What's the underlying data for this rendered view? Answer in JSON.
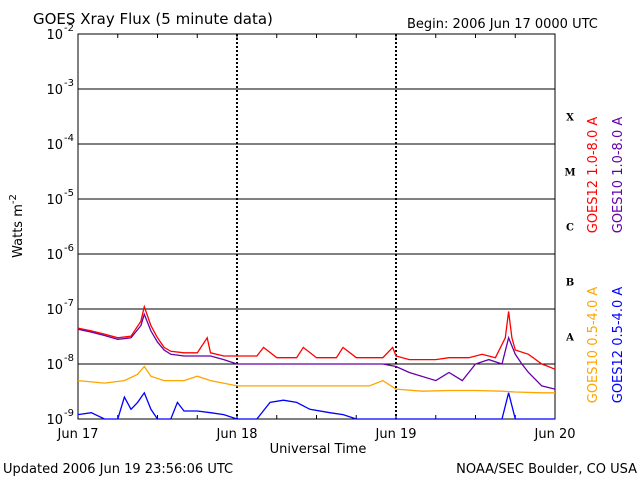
{
  "chart_data": {
    "type": "line",
    "title": "GOES Xray Flux (5 minute data)",
    "begin_label": "Begin:  2006 Jun 17 0000 UTC",
    "xlabel": "Universal Time",
    "ylabel": "Watts m",
    "ylabel_sup": "-2",
    "yscale": "log",
    "ylim": [
      1e-09,
      0.01
    ],
    "xlim": [
      0,
      72
    ],
    "x_unit": "hours since 2006 Jun 17 0000 UTC",
    "x_ticks": [
      {
        "x": 0,
        "label": "Jun 17"
      },
      {
        "x": 24,
        "label": "Jun 18"
      },
      {
        "x": 48,
        "label": "Jun 19"
      },
      {
        "x": 72,
        "label": "Jun 20"
      }
    ],
    "y_ticks": [
      {
        "base": "10",
        "exp": "-9"
      },
      {
        "base": "10",
        "exp": "-8"
      },
      {
        "base": "10",
        "exp": "-7"
      },
      {
        "base": "10",
        "exp": "-6"
      },
      {
        "base": "10",
        "exp": "-5"
      },
      {
        "base": "10",
        "exp": "-4"
      },
      {
        "base": "10",
        "exp": "-3"
      },
      {
        "base": "10",
        "exp": "-2"
      }
    ],
    "flare_classes": [
      "A",
      "B",
      "C",
      "M",
      "X"
    ],
    "series": [
      {
        "name": "GOES12 1.0-8.0 A",
        "color": "#ff0000",
        "points": [
          [
            0,
            4.5e-08
          ],
          [
            2,
            4e-08
          ],
          [
            4,
            3.5e-08
          ],
          [
            6,
            3e-08
          ],
          [
            8,
            3.2e-08
          ],
          [
            9.5,
            6e-08
          ],
          [
            10,
            1.1e-07
          ],
          [
            11,
            5e-08
          ],
          [
            12,
            3e-08
          ],
          [
            13,
            2e-08
          ],
          [
            14,
            1.7e-08
          ],
          [
            16,
            1.6e-08
          ],
          [
            18,
            1.6e-08
          ],
          [
            19.5,
            3e-08
          ],
          [
            20,
            1.6e-08
          ],
          [
            22,
            1.4e-08
          ],
          [
            24,
            1.4e-08
          ],
          [
            27,
            1.4e-08
          ],
          [
            28,
            2e-08
          ],
          [
            30,
            1.3e-08
          ],
          [
            33,
            1.3e-08
          ],
          [
            34,
            2e-08
          ],
          [
            36,
            1.3e-08
          ],
          [
            39,
            1.3e-08
          ],
          [
            40,
            2e-08
          ],
          [
            42,
            1.3e-08
          ],
          [
            46,
            1.3e-08
          ],
          [
            47.5,
            2e-08
          ],
          [
            48,
            1.4e-08
          ],
          [
            50,
            1.2e-08
          ],
          [
            54,
            1.2e-08
          ],
          [
            56,
            1.3e-08
          ],
          [
            59,
            1.3e-08
          ],
          [
            61,
            1.5e-08
          ],
          [
            63,
            1.3e-08
          ],
          [
            64.5,
            3e-08
          ],
          [
            65,
            9e-08
          ],
          [
            65.5,
            3e-08
          ],
          [
            66,
            1.8e-08
          ],
          [
            68,
            1.5e-08
          ],
          [
            70,
            1e-08
          ],
          [
            71,
            9e-09
          ],
          [
            72,
            8e-09
          ]
        ]
      },
      {
        "name": "GOES10 1.0-8.0 A",
        "color": "#6600aa",
        "points": [
          [
            0,
            4.3e-08
          ],
          [
            2,
            3.8e-08
          ],
          [
            4,
            3.3e-08
          ],
          [
            6,
            2.8e-08
          ],
          [
            8,
            3e-08
          ],
          [
            9.5,
            5e-08
          ],
          [
            10,
            8e-08
          ],
          [
            11,
            4e-08
          ],
          [
            12,
            2.5e-08
          ],
          [
            13,
            1.8e-08
          ],
          [
            14,
            1.5e-08
          ],
          [
            16,
            1.4e-08
          ],
          [
            18,
            1.4e-08
          ],
          [
            20,
            1.4e-08
          ],
          [
            22,
            1.2e-08
          ],
          [
            24,
            1e-08
          ],
          [
            27,
            1e-08
          ],
          [
            30,
            1e-08
          ],
          [
            33,
            1e-08
          ],
          [
            36,
            1e-08
          ],
          [
            40,
            1e-08
          ],
          [
            44,
            1e-08
          ],
          [
            46,
            1e-08
          ],
          [
            48,
            9e-09
          ],
          [
            50,
            7e-09
          ],
          [
            54,
            5e-09
          ],
          [
            56,
            7e-09
          ],
          [
            58,
            5e-09
          ],
          [
            60,
            1e-08
          ],
          [
            62,
            1.2e-08
          ],
          [
            64,
            1e-08
          ],
          [
            65,
            3e-08
          ],
          [
            66,
            1.5e-08
          ],
          [
            67,
            1e-08
          ],
          [
            68,
            7e-09
          ],
          [
            70,
            4e-09
          ],
          [
            72,
            3.5e-09
          ]
        ]
      },
      {
        "name": "GOES10 0.5-4.0 A",
        "color": "#ffa500",
        "points": [
          [
            0,
            5e-09
          ],
          [
            4,
            4.5e-09
          ],
          [
            7,
            5e-09
          ],
          [
            9,
            6.5e-09
          ],
          [
            10,
            9e-09
          ],
          [
            11,
            6e-09
          ],
          [
            13,
            5e-09
          ],
          [
            16,
            5e-09
          ],
          [
            18,
            6e-09
          ],
          [
            20,
            5e-09
          ],
          [
            24,
            4e-09
          ],
          [
            30,
            4e-09
          ],
          [
            36,
            4e-09
          ],
          [
            40,
            4e-09
          ],
          [
            44,
            4e-09
          ],
          [
            46,
            5e-09
          ],
          [
            48,
            3.5e-09
          ],
          [
            52,
            3.2e-09
          ],
          [
            56,
            3.3e-09
          ],
          [
            60,
            3.3e-09
          ],
          [
            64,
            3.2e-09
          ],
          [
            66,
            3.1e-09
          ],
          [
            70,
            3e-09
          ],
          [
            72,
            3e-09
          ]
        ]
      },
      {
        "name": "GOES12 0.5-4.0 A",
        "color": "#0000ff",
        "points": [
          [
            0,
            1.2e-09
          ],
          [
            2,
            1.3e-09
          ],
          [
            4,
            1e-09
          ],
          [
            6,
            1e-09
          ],
          [
            7,
            2.5e-09
          ],
          [
            8,
            1.5e-09
          ],
          [
            9,
            2e-09
          ],
          [
            10,
            3e-09
          ],
          [
            11,
            1.5e-09
          ],
          [
            12,
            1e-09
          ],
          [
            14,
            1e-09
          ],
          [
            15,
            2e-09
          ],
          [
            16,
            1.4e-09
          ],
          [
            18,
            1.4e-09
          ],
          [
            20,
            1.3e-09
          ],
          [
            22,
            1.2e-09
          ],
          [
            24,
            1e-09
          ],
          [
            27,
            1e-09
          ],
          [
            29,
            2e-09
          ],
          [
            31,
            2.2e-09
          ],
          [
            33,
            2e-09
          ],
          [
            35,
            1.5e-09
          ],
          [
            38,
            1.3e-09
          ],
          [
            40,
            1.2e-09
          ],
          [
            42,
            1e-09
          ],
          [
            44,
            1e-09
          ],
          [
            48,
            1e-09
          ],
          [
            52,
            1e-09
          ],
          [
            56,
            1e-09
          ],
          [
            60,
            1e-09
          ],
          [
            64,
            1e-09
          ],
          [
            65,
            3e-09
          ],
          [
            66,
            1e-09
          ],
          [
            72,
            1e-09
          ]
        ]
      }
    ]
  },
  "footer": {
    "updated": "Updated 2006 Jun 19 23:56:06 UTC",
    "credit": "NOAA/SEC Boulder, CO USA"
  }
}
